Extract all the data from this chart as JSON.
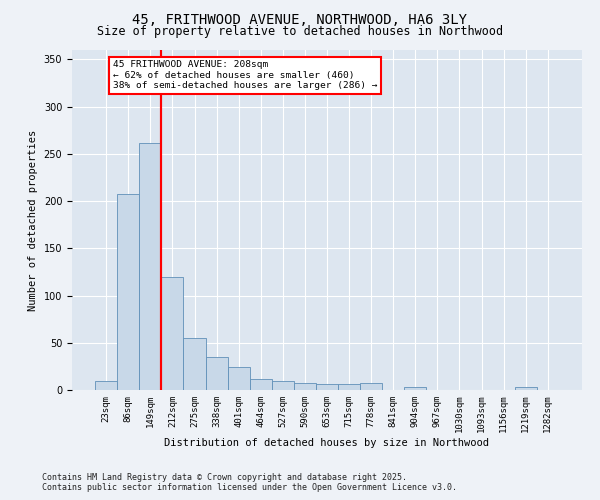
{
  "title": "45, FRITHWOOD AVENUE, NORTHWOOD, HA6 3LY",
  "subtitle": "Size of property relative to detached houses in Northwood",
  "xlabel": "Distribution of detached houses by size in Northwood",
  "ylabel": "Number of detached properties",
  "bins": [
    "23sqm",
    "86sqm",
    "149sqm",
    "212sqm",
    "275sqm",
    "338sqm",
    "401sqm",
    "464sqm",
    "527sqm",
    "590sqm",
    "653sqm",
    "715sqm",
    "778sqm",
    "841sqm",
    "904sqm",
    "967sqm",
    "1030sqm",
    "1093sqm",
    "1156sqm",
    "1219sqm",
    "1282sqm"
  ],
  "values": [
    10,
    207,
    262,
    120,
    55,
    35,
    24,
    12,
    10,
    7,
    6,
    6,
    7,
    0,
    3,
    0,
    0,
    0,
    0,
    3,
    0
  ],
  "bar_color": "#c8d8e8",
  "bar_edge_color": "#6090b8",
  "red_line_bin": 3,
  "annotation_line1": "45 FRITHWOOD AVENUE: 208sqm",
  "annotation_line2": "← 62% of detached houses are smaller (460)",
  "annotation_line3": "38% of semi-detached houses are larger (286) →",
  "ylim": [
    0,
    360
  ],
  "yticks": [
    0,
    50,
    100,
    150,
    200,
    250,
    300,
    350
  ],
  "bg_color": "#eef2f7",
  "plot_bg_color": "#dde6f0",
  "grid_color": "#ffffff",
  "footer_line1": "Contains HM Land Registry data © Crown copyright and database right 2025.",
  "footer_line2": "Contains public sector information licensed under the Open Government Licence v3.0."
}
